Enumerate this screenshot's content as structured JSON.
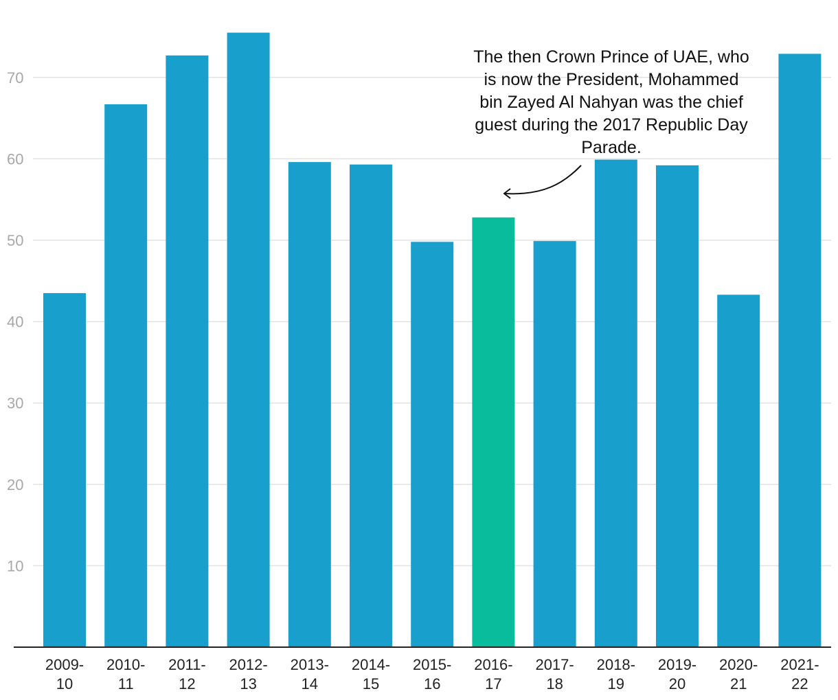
{
  "chart_data": {
    "type": "bar",
    "categories": [
      [
        "2009-",
        "10"
      ],
      [
        "2010-",
        "11"
      ],
      [
        "2011-",
        "12"
      ],
      [
        "2012-",
        "13"
      ],
      [
        "2013-",
        "14"
      ],
      [
        "2014-",
        "15"
      ],
      [
        "2015-",
        "16"
      ],
      [
        "2016-",
        "17"
      ],
      [
        "2017-",
        "18"
      ],
      [
        "2018-",
        "19"
      ],
      [
        "2019-",
        "20"
      ],
      [
        "2020-",
        "21"
      ],
      [
        "2021-",
        "22"
      ]
    ],
    "values": [
      43.5,
      66.7,
      72.7,
      75.5,
      59.6,
      59.3,
      49.8,
      52.8,
      49.9,
      59.9,
      59.2,
      43.3,
      72.9
    ],
    "highlight_index": 7,
    "colors": {
      "bar": "#199fcc",
      "highlight": "#08bc9c",
      "grid": "#e2e2e2",
      "axis": "#222222"
    },
    "yticks": [
      10,
      20,
      30,
      40,
      50,
      60,
      70
    ],
    "ylim": [
      0,
      76
    ],
    "grid": true,
    "legend": "none",
    "annotation": {
      "lines": [
        "The then Crown Prince of UAE, who",
        "is now the President, Mohammed",
        "bin Zayed Al Nahyan was the chief",
        "guest during the 2017 Republic Day",
        "Parade."
      ]
    }
  }
}
